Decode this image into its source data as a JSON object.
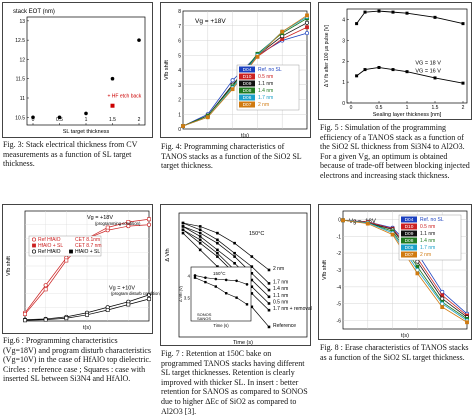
{
  "captions": {
    "fig3": "Fig. 3: Stack electrical thickness from CV measurements as a function of  SL target thickness.",
    "fig4": "Fig. 4: Programming characteristics of TANOS stacks as a function of the SiO2 SL target thickness.",
    "fig5": "Fig. 5 : Simulation of the programming efficiency of a TANOS stack as a function of the SiO2 SL thickness from Si3N4 to Al2O3. For a given Vg, an optimum is obtained because of trade-off between blocking injected electrons and increasing stack thickness.",
    "fig6": "Fig.6 : Programming characteristics (Vg=18V) and program disturb characteristics (Vg=10V) in the case of HfAlO top dielectric. Circles : reference case ; Squares : case with inserted SL between Si3N4 and HfAlO.",
    "fig7": "Fig. 7 : Retention at 150C bake on programmed TANOS stacks having different SL target thicknesses. Retention is clearly improved with thicker SL. In insert : better retention for SANOS as compared to SONOS due to higher ΔEc of SiO2 as compared to Al2O3 [3].",
    "fig8": "Fig. 8 : Erase characteristics of TANOS stacks as a function of the SiO2 SL target thickness."
  },
  "chart_data": [
    {
      "id": "fig3",
      "type": "scatter",
      "title": "stack EOT (nm)",
      "xlabel": "SL target thickness",
      "ylabel": "",
      "xlim": [
        0,
        2
      ],
      "ylim": [
        10.3,
        13.1
      ],
      "x_ticks": [
        "0",
        "0.5",
        "1",
        "1.5",
        "2"
      ],
      "y_ticks": [
        "10.5",
        "11",
        "11.5",
        "12",
        "12.5",
        "13"
      ],
      "series": [
        {
          "name": "",
          "x": [
            0,
            0.5,
            1,
            1.5,
            2
          ],
          "y": [
            10.5,
            10.5,
            10.6,
            11.5,
            12.5
          ]
        },
        {
          "name": "+ HF  etch back",
          "x": [
            1.5
          ],
          "y": [
            10.8
          ]
        }
      ],
      "colors": [
        "#000000",
        "#cc0000"
      ]
    },
    {
      "id": "fig4",
      "type": "line",
      "annotation": "Vg = +18V",
      "xlabel": "t(s)",
      "ylabel": "Vfb shift",
      "y_ticks": [
        "0",
        "1",
        "2",
        "3",
        "4",
        "5",
        "6",
        "7",
        "8"
      ],
      "x_ticks": [
        "",
        "",
        "",
        "",
        "",
        ""
      ],
      "ylim": [
        0,
        8
      ],
      "xlim": [
        0,
        5
      ],
      "series": [
        {
          "name": "Ref. no SL",
          "label": "D04",
          "values": [
            0.2,
            1.0,
            3.3,
            5.0,
            6.0,
            6.5
          ]
        },
        {
          "name": "0.5 nm",
          "label": "D10",
          "values": [
            0.2,
            0.9,
            3.0,
            4.9,
            6.1,
            6.9
          ]
        },
        {
          "name": "1.1 nm",
          "label": "D09",
          "values": [
            0.2,
            0.9,
            3.0,
            5.0,
            6.3,
            7.2
          ]
        },
        {
          "name": "1.4 nm",
          "label": "D08",
          "values": [
            0.2,
            0.9,
            2.9,
            5.1,
            6.5,
            7.5
          ]
        },
        {
          "name": "1.7 nm",
          "label": "D06",
          "values": [
            0.2,
            0.8,
            2.8,
            5.0,
            6.6,
            7.6
          ]
        },
        {
          "name": "2 nm",
          "label": "D07",
          "values": [
            0.2,
            0.8,
            2.7,
            4.9,
            6.6,
            7.7
          ]
        }
      ],
      "colors": [
        "#1a3fbf",
        "#cc2222",
        "#111111",
        "#1f7a1f",
        "#1aa0c8",
        "#d07a10"
      ]
    },
    {
      "id": "fig5",
      "type": "line",
      "xlabel": "Sealing layer thickness [nm]",
      "ylabel": "Δ V fb after 100 μs pulse [V]",
      "xlim": [
        0,
        2
      ],
      "ylim": [
        0,
        4.5
      ],
      "x_ticks": [
        "0",
        "0.5",
        "1",
        "1.5",
        "2"
      ],
      "y_ticks": [
        "0",
        "1",
        "2",
        "3",
        "4"
      ],
      "series": [
        {
          "name": "VG = 18 V",
          "x": [
            0.1,
            0.25,
            0.5,
            0.75,
            1,
            1.5,
            2
          ],
          "y": [
            3.8,
            4.35,
            4.4,
            4.35,
            4.3,
            4.1,
            3.8
          ]
        },
        {
          "name": "VG = 16 V",
          "x": [
            0.1,
            0.25,
            0.5,
            0.75,
            1,
            1.5,
            2
          ],
          "y": [
            1.3,
            1.6,
            1.7,
            1.6,
            1.5,
            1.2,
            0.95
          ]
        }
      ]
    },
    {
      "id": "fig6",
      "type": "line",
      "xlabel": "t(s)",
      "ylabel": "Vfb shift",
      "xlim": [
        0,
        5
      ],
      "ylim": [
        0,
        8
      ],
      "annotations": [
        "Vg = +18V",
        "(programming condition)",
        "Vg = +10V",
        "(program disturb condition)"
      ],
      "series": [
        {
          "name": "Ref HfAlO",
          "label": "CET 8.1nm",
          "values": [
            0.6,
            2.6,
            4.6,
            6.0,
            6.6,
            6.9,
            7.0
          ]
        },
        {
          "name": "HfAlO + SL",
          "label": "CET 8.7 nm",
          "values": [
            0.5,
            2.3,
            4.4,
            6.0,
            6.8,
            7.2,
            7.4
          ]
        },
        {
          "name": "Ref HfAlO",
          "label": "",
          "values": [
            0.1,
            0.15,
            0.3,
            0.6,
            1.0,
            1.4,
            1.9
          ]
        },
        {
          "name": "HfAlO + SL",
          "label": "",
          "values": [
            0.05,
            0.1,
            0.2,
            0.45,
            0.8,
            1.2,
            1.6
          ]
        }
      ]
    },
    {
      "id": "fig7",
      "type": "line",
      "annotation": "150°C",
      "xlabel": "Time (s)",
      "ylabel": "Δ Vth",
      "series": [
        {
          "name": "2 nm",
          "values": [
            3.9,
            3.8,
            3.6,
            3.3,
            2.9,
            2.5
          ]
        },
        {
          "name": "1.7 nm",
          "values": [
            3.9,
            3.7,
            3.4,
            3.0,
            2.6,
            2.1
          ]
        },
        {
          "name": "1.4 nm",
          "values": [
            3.8,
            3.6,
            3.3,
            2.9,
            2.4,
            1.9
          ]
        },
        {
          "name": "1.1 nm",
          "values": [
            3.8,
            3.5,
            3.1,
            2.7,
            2.2,
            1.7
          ]
        },
        {
          "name": "0.5 nm",
          "values": [
            3.7,
            3.4,
            3.0,
            2.5,
            2.0,
            1.5
          ]
        },
        {
          "name": "1.7 nm + removal",
          "values": [
            3.7,
            3.3,
            2.9,
            2.4,
            1.8,
            1.3
          ]
        },
        {
          "name": "Reference",
          "values": [
            3.6,
            3.1,
            2.6,
            2.0,
            1.4,
            0.8
          ]
        }
      ],
      "insert": {
        "annotation": "150°C",
        "xlabel": "Time (s)",
        "ylabel": "Δ Vfb (V)",
        "y_ticks": [
          "3.5",
          "4"
        ],
        "series": [
          {
            "name": "SONOS",
            "values": [
              4.0,
              3.95,
              3.92,
              3.9,
              3.88,
              3.8
            ]
          },
          {
            "name": "SANOS",
            "values": [
              3.95,
              3.85,
              3.75,
              3.6,
              3.5,
              3.35
            ]
          }
        ]
      }
    },
    {
      "id": "fig8",
      "type": "line",
      "annotation": "Vg = -18V",
      "xlabel": "t(s)",
      "ylabel": "Vfb shift",
      "y_ticks": [
        "0",
        "-1",
        "-2",
        "-3",
        "-4",
        "-5",
        "-6"
      ],
      "ylim": [
        -6.5,
        0.5
      ],
      "xlim": [
        0,
        5
      ],
      "series": [
        {
          "name": "Ref. no SL",
          "label": "D04",
          "values": [
            -0.05,
            -0.15,
            -0.5,
            -2.0,
            -4.3,
            -5.6
          ]
        },
        {
          "name": "0.5 nm",
          "label": "D10",
          "values": [
            -0.05,
            -0.15,
            -0.55,
            -2.3,
            -4.5,
            -5.7
          ]
        },
        {
          "name": "1.1 nm",
          "label": "D09",
          "values": [
            -0.05,
            -0.2,
            -0.6,
            -2.5,
            -4.7,
            -5.8
          ]
        },
        {
          "name": "1.4 nm",
          "label": "D08",
          "values": [
            -0.05,
            -0.2,
            -0.7,
            -2.8,
            -4.9,
            -5.9
          ]
        },
        {
          "name": "1.7 nm",
          "label": "D06",
          "values": [
            -0.05,
            -0.2,
            -0.8,
            -3.0,
            -5.0,
            -6.0
          ]
        },
        {
          "name": "2 nm",
          "label": "D07",
          "values": [
            -0.05,
            -0.25,
            -0.9,
            -3.2,
            -5.2,
            -6.1
          ]
        }
      ],
      "colors": [
        "#1a3fbf",
        "#cc2222",
        "#111111",
        "#1f7a1f",
        "#1aa0c8",
        "#d07a10"
      ]
    }
  ]
}
